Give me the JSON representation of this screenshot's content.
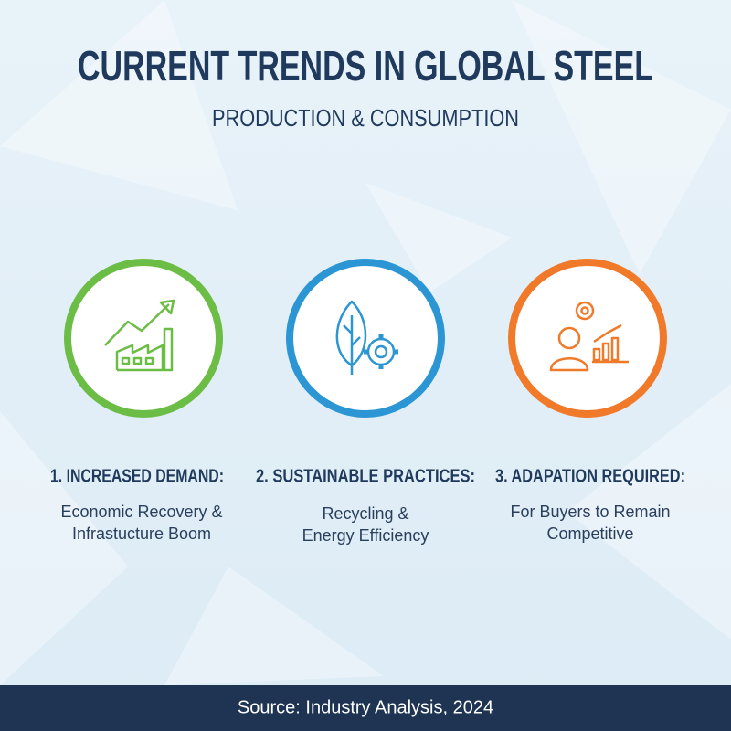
{
  "header": {
    "title": "CURRENT TRENDS IN GLOBAL STEEL",
    "subtitle": "PRODUCTION & CONSUMPTION"
  },
  "items": [
    {
      "heading": "1. INCREASED DEMAND:",
      "lines": [
        "Economic Recovery &",
        "Infrastucture Boom"
      ]
    },
    {
      "heading": "2. SUSTAINABLE PRACTICES:",
      "lines": [
        "Recycling &",
        "Energy Efficiency"
      ]
    },
    {
      "heading": "3. ADAPATION REQUIRED:",
      "lines": [
        "For Buyers to Remain",
        "Competitive"
      ]
    }
  ],
  "footer": {
    "source": "Source: Industry Analysis, 2024"
  }
}
